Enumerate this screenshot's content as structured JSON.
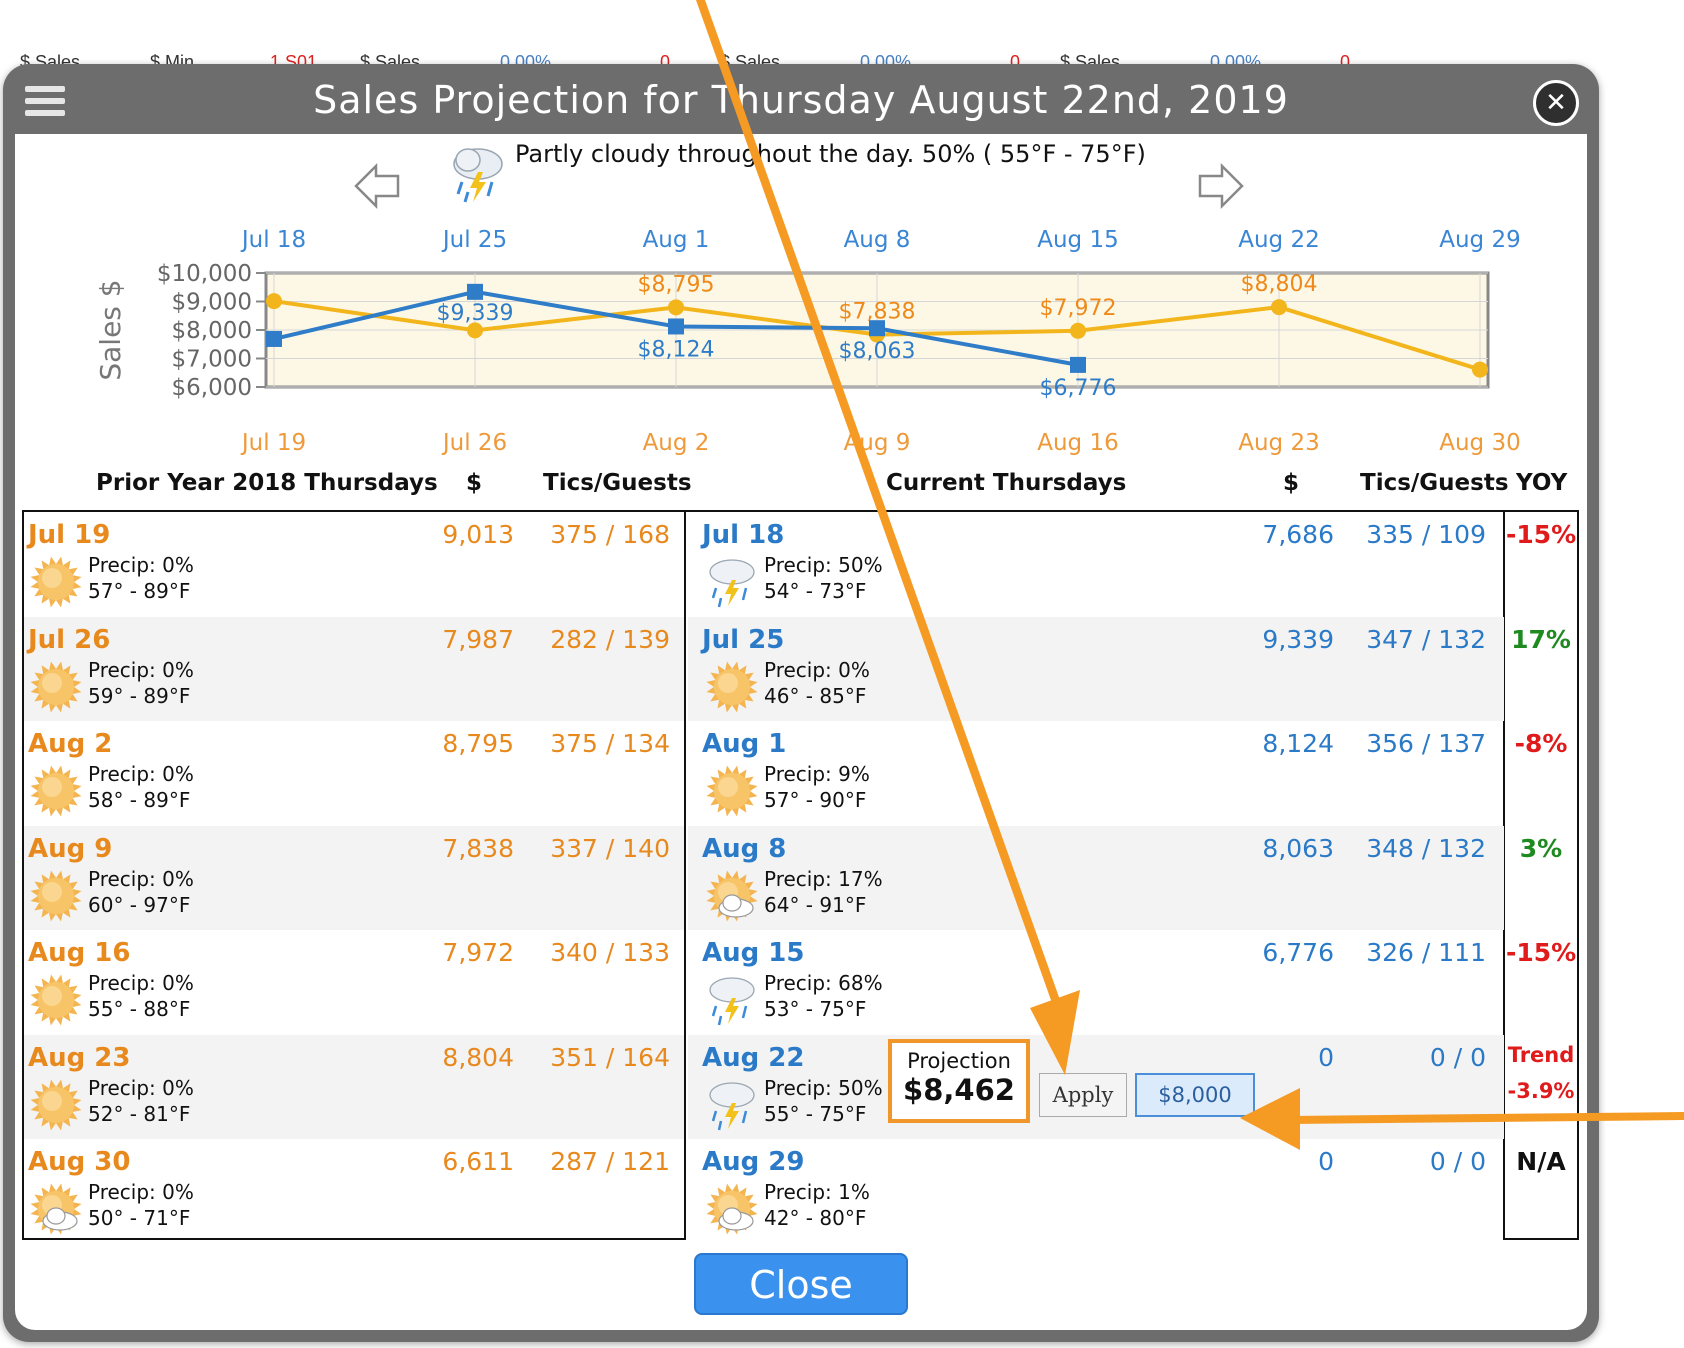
{
  "background_fragments": [
    "$ Sales",
    "$ Min",
    "1 S01",
    "$ Sales",
    "0.00%",
    "0",
    "$ Sales",
    "0.00%",
    "0",
    "$ Sales",
    "0.00%",
    "0"
  ],
  "modal": {
    "title": "Sales Projection for Thursday August 22nd, 2019",
    "weather_description": "Partly cloudy throughout the day. 50% ( 55°F - 75°F)"
  },
  "chart_data": {
    "type": "line",
    "ylabel": "Sales $",
    "ylim": [
      6000,
      10000
    ],
    "yticks": [
      "$10,000",
      "$9,000",
      "$8,000",
      "$7,000",
      "$6,000"
    ],
    "x_top": [
      "Jul 18",
      "Jul 25",
      "Aug 1",
      "Aug 8",
      "Aug 15",
      "Aug 22",
      "Aug 29"
    ],
    "x_bottom": [
      "Jul 19",
      "Jul 26",
      "Aug 2",
      "Aug 9",
      "Aug 16",
      "Aug 23",
      "Aug 30"
    ],
    "series": [
      {
        "values": [
          9013,
          7987,
          8795,
          7838,
          7972,
          8804,
          6611
        ],
        "labels": [
          "",
          "",
          "$8,795",
          "$7,838",
          "$7,972",
          "$8,804",
          ""
        ],
        "color": "#f3b51c"
      },
      {
        "values": [
          7686,
          9339,
          8124,
          8063,
          6776
        ],
        "labels": [
          "",
          "$9,339",
          "$8,124",
          "$8,063",
          "$6,776"
        ],
        "color": "#2f7cc8"
      }
    ]
  },
  "headers": {
    "prior": "Prior Year 2018 Thursdays",
    "prior_dollar": "$",
    "prior_tics": "Tics/Guests",
    "current": "Current Thursdays",
    "current_dollar": "$",
    "current_tics": "Tics/Guests",
    "yoy": "YOY"
  },
  "prior_rows": [
    {
      "date": "Jul 19",
      "sales": "9,013",
      "tics": "375 / 168",
      "precip": "Precip: 0%",
      "temp": "57° - 89°F",
      "icon": "sun"
    },
    {
      "date": "Jul 26",
      "sales": "7,987",
      "tics": "282 / 139",
      "precip": "Precip: 0%",
      "temp": "59° - 89°F",
      "icon": "sun"
    },
    {
      "date": "Aug 2",
      "sales": "8,795",
      "tics": "375 / 134",
      "precip": "Precip: 0%",
      "temp": "58° - 89°F",
      "icon": "sun"
    },
    {
      "date": "Aug 9",
      "sales": "7,838",
      "tics": "337 / 140",
      "precip": "Precip: 0%",
      "temp": "60° - 97°F",
      "icon": "sun"
    },
    {
      "date": "Aug 16",
      "sales": "7,972",
      "tics": "340 / 133",
      "precip": "Precip: 0%",
      "temp": "55° - 88°F",
      "icon": "sun"
    },
    {
      "date": "Aug 23",
      "sales": "8,804",
      "tics": "351 / 164",
      "precip": "Precip: 0%",
      "temp": "52° - 81°F",
      "icon": "sun"
    },
    {
      "date": "Aug 30",
      "sales": "6,611",
      "tics": "287 / 121",
      "precip": "Precip: 0%",
      "temp": "50° - 71°F",
      "icon": "sun-cloud"
    }
  ],
  "current_rows": [
    {
      "date": "Jul 18",
      "sales": "7,686",
      "tics": "335 / 109",
      "precip": "Precip: 50%",
      "temp": "54° - 73°F",
      "icon": "storm",
      "yoy": "-15%",
      "yoy_color": "#e01b1b"
    },
    {
      "date": "Jul 25",
      "sales": "9,339",
      "tics": "347 / 132",
      "precip": "Precip: 0%",
      "temp": "46° - 85°F",
      "icon": "sun",
      "yoy": "17%",
      "yoy_color": "#1f8a1f"
    },
    {
      "date": "Aug 1",
      "sales": "8,124",
      "tics": "356 / 137",
      "precip": "Precip: 9%",
      "temp": "57° - 90°F",
      "icon": "sun",
      "yoy": "-8%",
      "yoy_color": "#e01b1b"
    },
    {
      "date": "Aug 8",
      "sales": "8,063",
      "tics": "348 / 132",
      "precip": "Precip: 17%",
      "temp": "64° - 91°F",
      "icon": "sun-cloud",
      "yoy": "3%",
      "yoy_color": "#1f8a1f"
    },
    {
      "date": "Aug 15",
      "sales": "6,776",
      "tics": "326 / 111",
      "precip": "Precip: 68%",
      "temp": "53° - 75°F",
      "icon": "storm",
      "yoy": "-15%",
      "yoy_color": "#e01b1b"
    },
    {
      "date": "Aug 22",
      "sales": "0",
      "tics": "0 / 0",
      "precip": "Precip: 50%",
      "temp": "55° - 75°F",
      "icon": "storm",
      "yoy": "Trend",
      "yoy2": "-3.9%",
      "yoy_color": "#e01b1b"
    },
    {
      "date": "Aug 29",
      "sales": "0",
      "tics": "0 / 0",
      "precip": "Precip: 1%",
      "temp": "42° - 80°F",
      "icon": "sun-cloud",
      "yoy": "N/A",
      "yoy_color": "#111111"
    }
  ],
  "projection": {
    "label": "Projection",
    "value": "$8,462",
    "apply_label": "Apply",
    "input_value": "$8,000"
  },
  "close_label": "Close",
  "colors": {
    "accent_orange": "#f0962a",
    "blue": "#2a7ac8",
    "orange": "#e8891e"
  }
}
